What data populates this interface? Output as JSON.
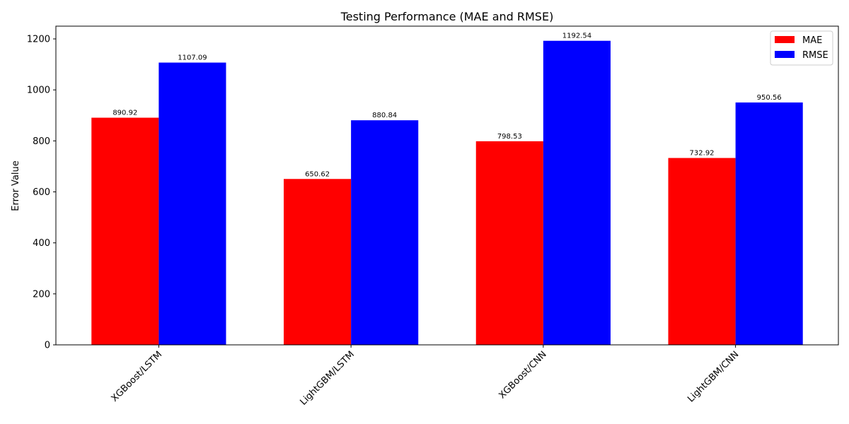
{
  "chart_data": {
    "type": "bar",
    "title": "Testing Performance (MAE and RMSE)",
    "xlabel": "",
    "ylabel": "Error Value",
    "categories": [
      "XGBoost/LSTM",
      "LightGBM/LSTM",
      "XGBoost/CNN",
      "LightGBM/CNN"
    ],
    "series": [
      {
        "name": "MAE",
        "color": "#ff0000",
        "values": [
          890.92,
          650.62,
          798.53,
          732.92
        ]
      },
      {
        "name": "RMSE",
        "color": "#0000ff",
        "values": [
          1107.09,
          880.84,
          1192.54,
          950.56
        ]
      }
    ],
    "ylim": [
      0,
      1250
    ],
    "yticks": [
      0,
      200,
      400,
      600,
      800,
      1000,
      1200
    ],
    "grid": false,
    "legend_position": "top-right",
    "xtick_rotation": 45
  }
}
